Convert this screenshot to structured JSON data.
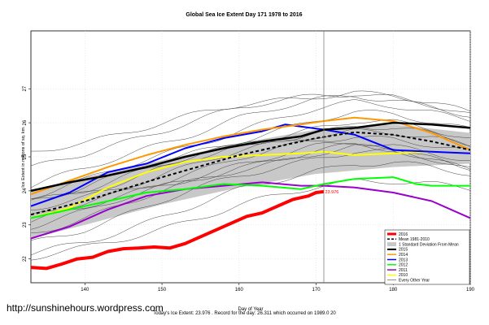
{
  "chart_data": {
    "type": "line",
    "title": "Global Sea Ice Extent Day 171 1978 to 2016",
    "xlabel": "Day of Year",
    "ylabel": "Ice Extent in millions of sq. km.",
    "xlim": [
      133,
      190
    ],
    "ylim": [
      21.3,
      28.7
    ],
    "x_ticks": [
      140,
      150,
      160,
      170,
      180,
      190
    ],
    "y_ticks": [
      22,
      23,
      24,
      25,
      26,
      27
    ],
    "grid": true,
    "legend_position": "bottom-right",
    "marker_day": 171,
    "current_label": "23.976",
    "band": {
      "x": [
        133,
        140,
        150,
        160,
        170,
        180,
        190
      ],
      "upper": [
        24.0,
        24.4,
        24.9,
        25.4,
        25.8,
        25.95,
        25.7
      ],
      "lower": [
        22.6,
        23.0,
        23.6,
        24.1,
        24.5,
        24.7,
        24.8
      ]
    },
    "series": [
      {
        "name": "2016",
        "color": "#ff0000",
        "width": 4,
        "x": [
          133,
          135,
          137,
          139,
          141,
          143,
          145,
          147,
          149,
          151,
          153,
          155,
          157,
          159,
          161,
          163,
          165,
          167,
          169,
          170,
          171
        ],
        "y": [
          21.75,
          21.72,
          21.85,
          22.0,
          22.05,
          22.22,
          22.3,
          22.32,
          22.35,
          22.32,
          22.45,
          22.65,
          22.85,
          23.05,
          23.25,
          23.35,
          23.55,
          23.75,
          23.85,
          23.95,
          23.976
        ]
      },
      {
        "name": "Mean 1981-2010",
        "color": "#000000",
        "width": 2,
        "dash": "4,3",
        "x": [
          133,
          140,
          150,
          160,
          170,
          175,
          180,
          185,
          190
        ],
        "y": [
          23.3,
          23.7,
          24.4,
          25.05,
          25.55,
          25.72,
          25.65,
          25.45,
          25.2
        ]
      },
      {
        "name": "2015",
        "color": "#000000",
        "width": 2.5,
        "x": [
          133,
          138,
          143,
          148,
          153,
          158,
          163,
          168,
          171,
          175,
          180,
          185,
          190
        ],
        "y": [
          24.0,
          24.25,
          24.45,
          24.7,
          25.0,
          25.25,
          25.45,
          25.6,
          25.8,
          25.85,
          26.0,
          25.95,
          25.85
        ]
      },
      {
        "name": "2014",
        "color": "#ff9900",
        "width": 2,
        "x": [
          133,
          138,
          143,
          148,
          153,
          158,
          163,
          168,
          171,
          175,
          180,
          185,
          190
        ],
        "y": [
          23.9,
          24.3,
          24.7,
          25.05,
          25.35,
          25.6,
          25.8,
          25.95,
          26.05,
          26.15,
          26.05,
          25.7,
          25.2
        ]
      },
      {
        "name": "2013",
        "color": "#0000ff",
        "width": 2,
        "x": [
          133,
          138,
          143,
          148,
          153,
          158,
          163,
          166,
          171,
          175,
          180,
          185,
          190
        ],
        "y": [
          23.55,
          23.95,
          24.55,
          24.8,
          25.25,
          25.55,
          25.75,
          25.95,
          25.8,
          25.65,
          25.2,
          25.15,
          25.1
        ]
      },
      {
        "name": "2012",
        "color": "#00ff00",
        "width": 2,
        "x": [
          133,
          138,
          143,
          148,
          153,
          158,
          163,
          168,
          171,
          175,
          180,
          183,
          185,
          190
        ],
        "y": [
          23.2,
          23.45,
          23.7,
          23.95,
          24.05,
          24.2,
          24.15,
          24.05,
          24.2,
          24.35,
          24.4,
          24.2,
          24.15,
          24.15
        ]
      },
      {
        "name": "2011",
        "color": "#9900cc",
        "width": 2,
        "x": [
          133,
          138,
          143,
          148,
          153,
          158,
          163,
          168,
          171,
          175,
          180,
          185,
          190
        ],
        "y": [
          22.6,
          22.95,
          23.45,
          23.85,
          24.05,
          24.15,
          24.25,
          24.15,
          24.15,
          24.1,
          23.95,
          23.7,
          23.2
        ]
      },
      {
        "name": "2010",
        "color": "#ffff00",
        "width": 2,
        "x": [
          133,
          138,
          143,
          148,
          153,
          158,
          163,
          168,
          171,
          175,
          180,
          185
        ],
        "y": [
          23.2,
          23.5,
          24.1,
          24.55,
          24.85,
          25.0,
          25.05,
          25.1,
          25.15,
          25.05,
          25.1,
          25.15
        ]
      }
    ],
    "other_years_label": "Every Other Year",
    "band_label": "1 Standard Deviation From Mean",
    "other_year_offsets": [
      -1.5,
      -1.2,
      -0.9,
      -0.7,
      -0.5,
      -0.3,
      -0.1,
      0.1,
      0.3,
      0.5,
      0.7,
      0.9,
      1.1,
      1.4,
      1.8
    ]
  },
  "footer": {
    "watermark": "http://sunshinehours.wordpress.com",
    "caption": "Today's Ice Extent: 23.976  .  Record for the day: 26.311 which occurred on 1989.0 20"
  },
  "colors": {
    "band": "#c8c8c8",
    "other_years": "#444444",
    "marker_line": "#808080"
  }
}
